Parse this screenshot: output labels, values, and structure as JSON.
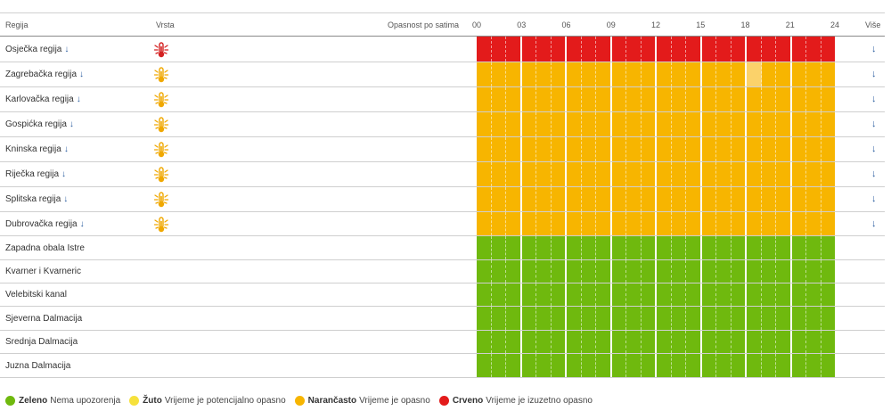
{
  "header": {
    "regija": "Regija",
    "vrsta": "Vrsta",
    "opasnost": "Opasnost po satima",
    "ticks": [
      "00",
      "03",
      "06",
      "09",
      "12",
      "15",
      "18",
      "21",
      "24"
    ],
    "vise": "Više"
  },
  "colors": {
    "green": "#6fb90e",
    "yellow": "#f6e13c",
    "orange": "#f7b500",
    "red": "#e31b1b",
    "orange_light": "#fbd26a",
    "icon_red": "#d42121",
    "icon_orange": "#f0a800"
  },
  "rows": [
    {
      "name": "Osječka regija",
      "expandable": true,
      "icon": "thermometer-hot-icon",
      "icon_color": "red",
      "level": "red",
      "light_hours": []
    },
    {
      "name": "Zagrebačka regija",
      "expandable": true,
      "icon": "thermometer-hot-icon",
      "icon_color": "orange",
      "level": "orange",
      "light_hours": [
        18
      ]
    },
    {
      "name": "Karlovačka regija",
      "expandable": true,
      "icon": "thermometer-hot-icon",
      "icon_color": "orange",
      "level": "orange",
      "light_hours": []
    },
    {
      "name": "Gospićka regija",
      "expandable": true,
      "icon": "thermometer-hot-icon",
      "icon_color": "orange",
      "level": "orange",
      "light_hours": []
    },
    {
      "name": "Kninska regija",
      "expandable": true,
      "icon": "thermometer-hot-icon",
      "icon_color": "orange",
      "level": "orange",
      "light_hours": []
    },
    {
      "name": "Riječka regija",
      "expandable": true,
      "icon": "thermometer-hot-icon",
      "icon_color": "orange",
      "level": "orange",
      "light_hours": []
    },
    {
      "name": "Splitska regija",
      "expandable": true,
      "icon": "thermometer-hot-icon",
      "icon_color": "orange",
      "level": "orange",
      "light_hours": []
    },
    {
      "name": "Dubrovačka regija",
      "expandable": true,
      "icon": "thermometer-hot-icon",
      "icon_color": "orange",
      "level": "orange",
      "light_hours": []
    },
    {
      "name": "Zapadna obala Istre",
      "expandable": false,
      "icon": "",
      "icon_color": "",
      "level": "green",
      "light_hours": []
    },
    {
      "name": "Kvarner i Kvarneric",
      "expandable": false,
      "icon": "",
      "icon_color": "",
      "level": "green",
      "light_hours": []
    },
    {
      "name": "Velebitski kanal",
      "expandable": false,
      "icon": "",
      "icon_color": "",
      "level": "green",
      "light_hours": []
    },
    {
      "name": "Sjeverna Dalmacija",
      "expandable": false,
      "icon": "",
      "icon_color": "",
      "level": "green",
      "light_hours": []
    },
    {
      "name": "Srednja Dalmacija",
      "expandable": false,
      "icon": "",
      "icon_color": "",
      "level": "green",
      "light_hours": []
    },
    {
      "name": "Juzna Dalmacija",
      "expandable": false,
      "icon": "",
      "icon_color": "",
      "level": "green",
      "light_hours": []
    }
  ],
  "legend": [
    {
      "color": "green",
      "label": "Zeleno",
      "text": "Nema upozorenja"
    },
    {
      "color": "yellow",
      "label": "Žuto",
      "text": "Vrijeme je potencijalno opasno"
    },
    {
      "color": "orange",
      "label": "Narančasto",
      "text": "Vrijeme je opasno"
    },
    {
      "color": "red",
      "label": "Crveno",
      "text": "Vrijeme je izuzetno opasno"
    }
  ]
}
